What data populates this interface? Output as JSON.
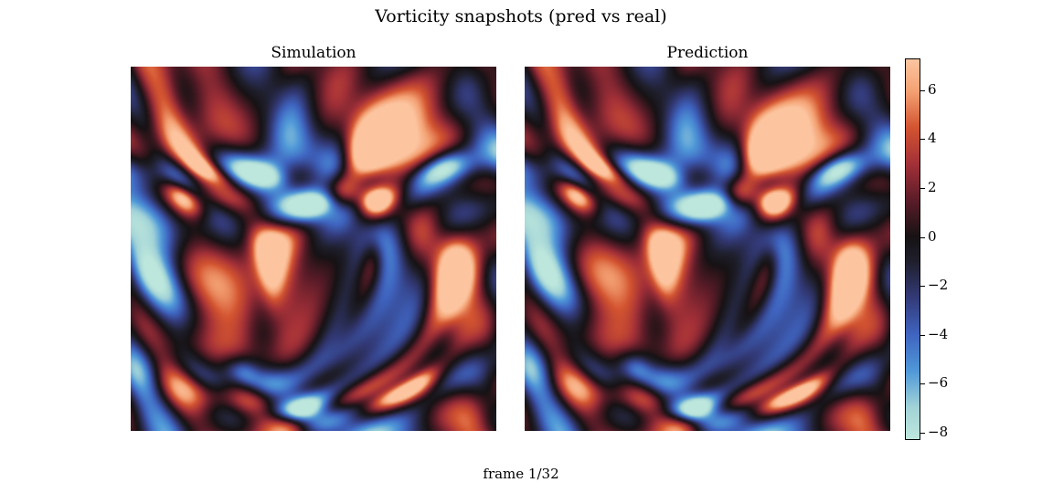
{
  "title": "Vorticity snapshots (pred vs real)",
  "footer": "frame 1/32",
  "chart_data": {
    "type": "heatmap",
    "title": "Vorticity snapshots (pred vs real)",
    "panels": [
      {
        "title": "Simulation"
      },
      {
        "title": "Prediction"
      }
    ],
    "colorbar": {
      "vmin": -8.3,
      "vmax": 7.3,
      "ticks": [
        6,
        4,
        2,
        0,
        -2,
        -4,
        -6,
        -8
      ],
      "tick_labels": [
        "6",
        "4",
        "2",
        "0",
        "−2",
        "−4",
        "−6",
        "−8"
      ],
      "colormap": [
        {
          "value": -8.3,
          "color": "#bde7dc"
        },
        {
          "value": -7.0,
          "color": "#a2d3d7"
        },
        {
          "value": -5.5,
          "color": "#4f98d8"
        },
        {
          "value": -4.0,
          "color": "#3f64c0"
        },
        {
          "value": -2.5,
          "color": "#333a78"
        },
        {
          "value": -1.0,
          "color": "#1f1f2c"
        },
        {
          "value": 0.0,
          "color": "#161214"
        },
        {
          "value": 1.5,
          "color": "#5a1c28"
        },
        {
          "value": 3.0,
          "color": "#a33038"
        },
        {
          "value": 4.5,
          "color": "#d35430"
        },
        {
          "value": 6.0,
          "color": "#f4a274"
        },
        {
          "value": 7.3,
          "color": "#fcc5a0"
        }
      ]
    }
  }
}
